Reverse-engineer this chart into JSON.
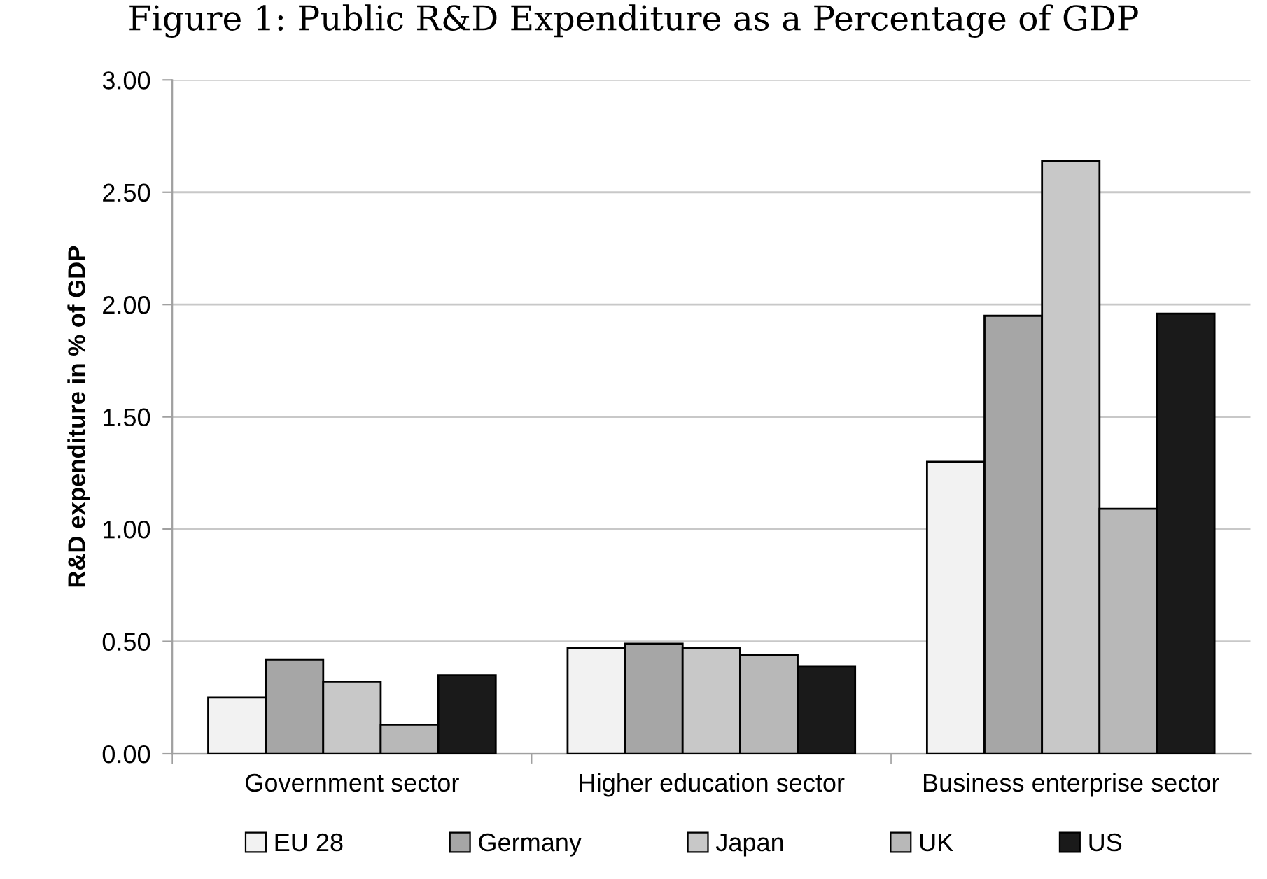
{
  "chart_data": {
    "type": "bar",
    "title": "Figure 1: Public R&D Expenditure as a Percentage of GDP",
    "ylabel": "R&D expenditure in % of GDP",
    "categories": [
      "Government sector",
      "Higher education sector",
      "Business enterprise sector"
    ],
    "series": [
      {
        "name": "EU 28",
        "color": "#f2f2f2",
        "values": [
          0.25,
          0.47,
          1.3
        ]
      },
      {
        "name": "Germany",
        "color": "#a6a6a6",
        "values": [
          0.42,
          0.49,
          1.95
        ]
      },
      {
        "name": "Japan",
        "color": "#c8c8c8",
        "values": [
          0.32,
          0.47,
          2.64
        ]
      },
      {
        "name": "UK",
        "color": "#b8b8b8",
        "values": [
          0.13,
          0.44,
          1.09
        ]
      },
      {
        "name": "US",
        "color": "#1a1a1a",
        "values": [
          0.35,
          0.39,
          1.96
        ]
      }
    ],
    "ylim": [
      0,
      3
    ],
    "yticks": [
      {
        "value": 0,
        "label": "0.00"
      },
      {
        "value": 0.5,
        "label": "0.50"
      },
      {
        "value": 1,
        "label": "1.00"
      },
      {
        "value": 1.5,
        "label": "1.50"
      },
      {
        "value": 2,
        "label": "2.00"
      },
      {
        "value": 2.5,
        "label": "2.50"
      },
      {
        "value": 3,
        "label": "3.00"
      }
    ],
    "grid": "y",
    "legend": "bottom"
  }
}
